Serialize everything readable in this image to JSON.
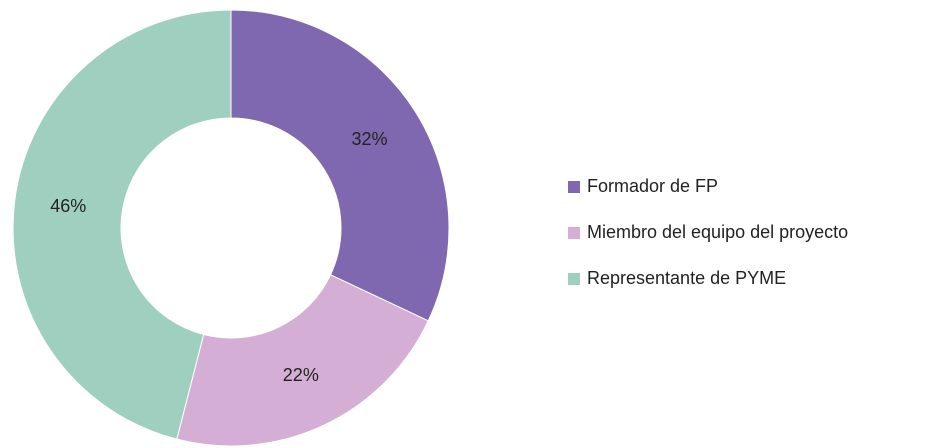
{
  "chart_data": {
    "type": "donut",
    "categories": [
      "Formador de FP",
      "Miembro del equipo del proyecto",
      "Representante de PYME"
    ],
    "values": [
      32,
      22,
      46
    ],
    "value_labels": [
      "32%",
      "22%",
      "46%"
    ],
    "colors": [
      "#8068b0",
      "#d4aed4",
      "#9ecfbf"
    ],
    "legend": "right"
  }
}
